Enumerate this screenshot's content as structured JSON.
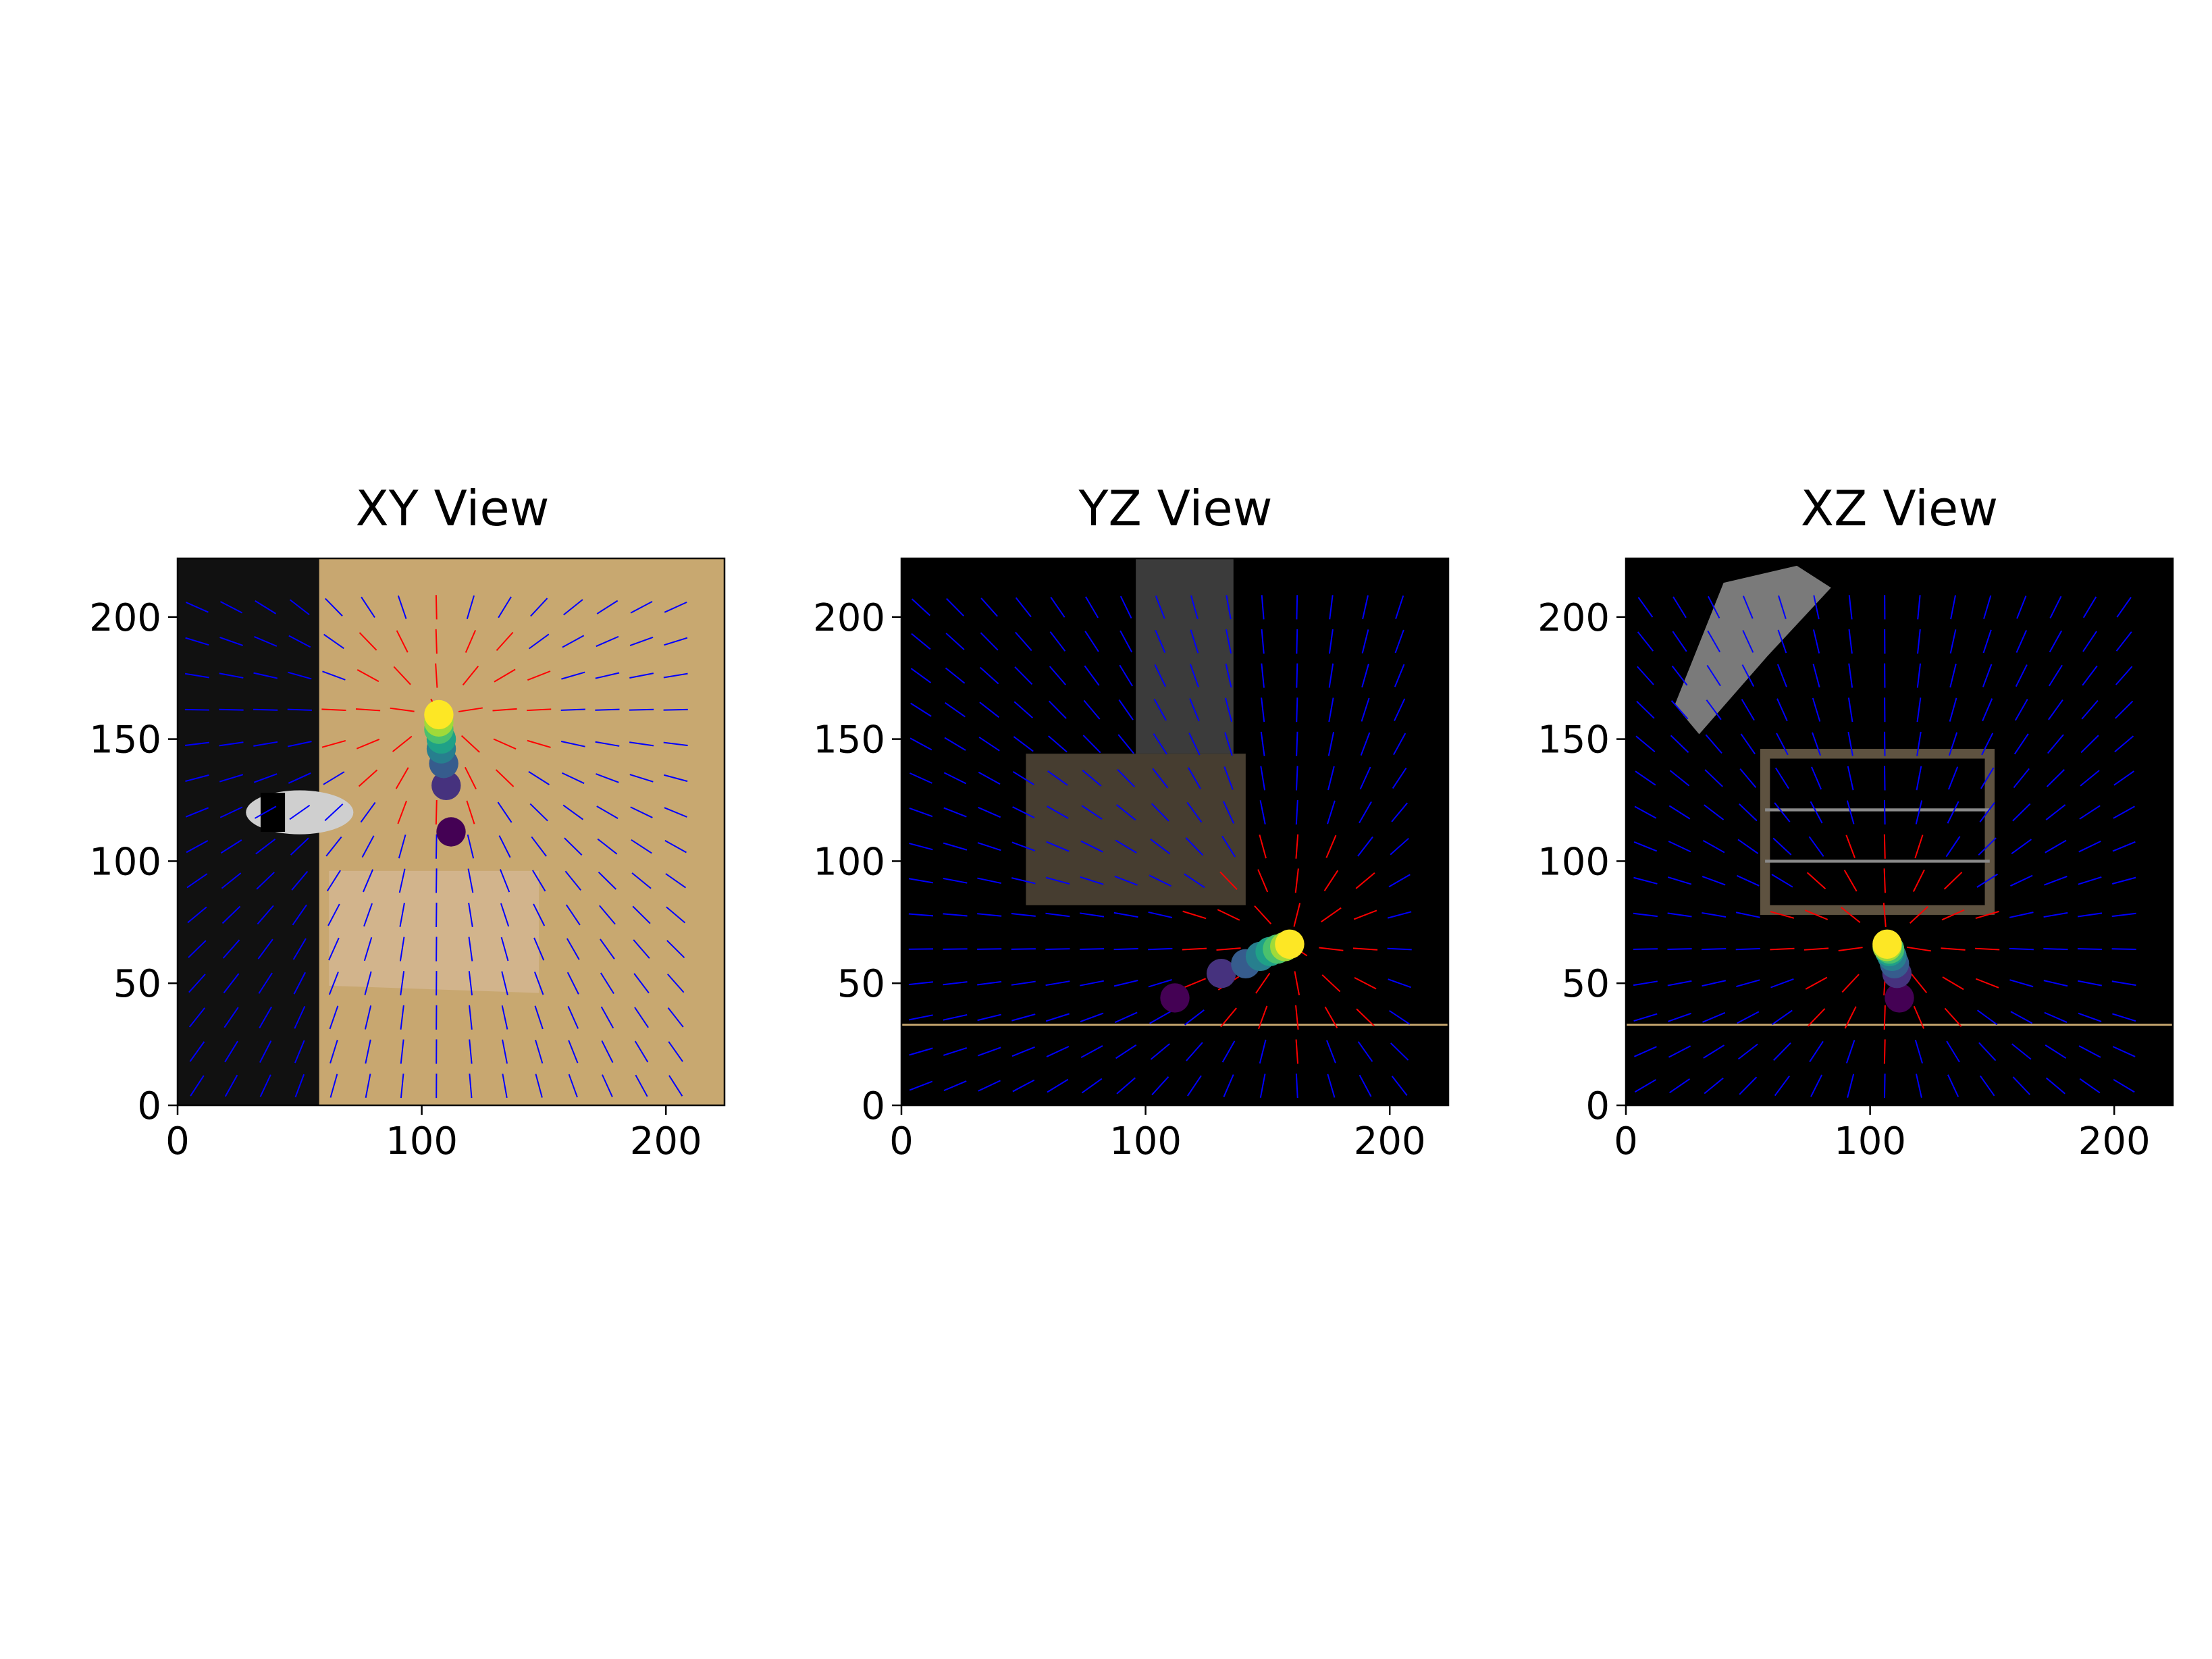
{
  "chart_data": [
    {
      "type": "scatter",
      "title": "XY View",
      "xlim": [
        0,
        224
      ],
      "ylim": [
        0,
        224
      ],
      "xticks": [
        0,
        100,
        200
      ],
      "yticks": [
        0,
        50,
        100,
        150,
        200
      ],
      "background": "#c8a870",
      "point_colormap": "viridis",
      "trajectory": [
        {
          "x": 112,
          "y": 112,
          "color": "#440154"
        },
        {
          "x": 110,
          "y": 131,
          "color": "#46327e"
        },
        {
          "x": 109,
          "y": 140,
          "color": "#365c8d"
        },
        {
          "x": 108,
          "y": 146,
          "color": "#277f8e"
        },
        {
          "x": 108,
          "y": 150,
          "color": "#1fa187"
        },
        {
          "x": 107,
          "y": 154,
          "color": "#4ac16d"
        },
        {
          "x": 107,
          "y": 157,
          "color": "#a0da39"
        },
        {
          "x": 107,
          "y": 160,
          "color": "#fde725"
        }
      ],
      "vector_field": {
        "type": "quiver",
        "colors": [
          "#ff0000",
          "#0000ff"
        ],
        "convergence_point": {
          "x": 107,
          "y": 160
        }
      }
    },
    {
      "type": "scatter",
      "title": "YZ View",
      "xlim": [
        0,
        224
      ],
      "ylim": [
        0,
        224
      ],
      "xticks": [
        0,
        100,
        200
      ],
      "yticks": [
        0,
        50,
        100,
        150,
        200
      ],
      "background": "#000000",
      "point_colormap": "viridis",
      "trajectory": [
        {
          "x": 112,
          "y": 44,
          "color": "#440154"
        },
        {
          "x": 131,
          "y": 54,
          "color": "#46327e"
        },
        {
          "x": 141,
          "y": 58,
          "color": "#365c8d"
        },
        {
          "x": 147,
          "y": 61,
          "color": "#277f8e"
        },
        {
          "x": 151,
          "y": 63,
          "color": "#1fa187"
        },
        {
          "x": 154,
          "y": 64,
          "color": "#4ac16d"
        },
        {
          "x": 157,
          "y": 65,
          "color": "#a0da39"
        },
        {
          "x": 159,
          "y": 66,
          "color": "#fde725"
        }
      ],
      "vector_field": {
        "type": "quiver",
        "colors": [
          "#ff0000",
          "#0000ff"
        ],
        "convergence_point": {
          "x": 159,
          "y": 66
        }
      }
    },
    {
      "type": "scatter",
      "title": "XZ View",
      "xlim": [
        0,
        224
      ],
      "ylim": [
        0,
        224
      ],
      "xticks": [
        0,
        100,
        200
      ],
      "yticks": [
        0,
        50,
        100,
        150,
        200
      ],
      "background": "#000000",
      "point_colormap": "viridis",
      "trajectory": [
        {
          "x": 112,
          "y": 44,
          "color": "#440154"
        },
        {
          "x": 111,
          "y": 54,
          "color": "#46327e"
        },
        {
          "x": 110,
          "y": 58,
          "color": "#365c8d"
        },
        {
          "x": 109,
          "y": 61,
          "color": "#277f8e"
        },
        {
          "x": 108,
          "y": 63,
          "color": "#1fa187"
        },
        {
          "x": 108,
          "y": 64,
          "color": "#4ac16d"
        },
        {
          "x": 107,
          "y": 65,
          "color": "#a0da39"
        },
        {
          "x": 107,
          "y": 66,
          "color": "#fde725"
        }
      ],
      "vector_field": {
        "type": "quiver",
        "colors": [
          "#ff0000",
          "#0000ff"
        ],
        "convergence_point": {
          "x": 107,
          "y": 66
        }
      }
    }
  ]
}
